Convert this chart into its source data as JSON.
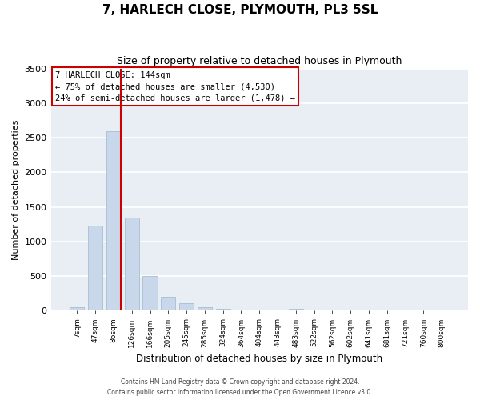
{
  "title": "7, HARLECH CLOSE, PLYMOUTH, PL3 5SL",
  "subtitle": "Size of property relative to detached houses in Plymouth",
  "xlabel": "Distribution of detached houses by size in Plymouth",
  "ylabel": "Number of detached properties",
  "bar_color": "#c8d8ea",
  "bar_edge_color": "#9ab8cc",
  "plot_bg_color": "#e8eef4",
  "fig_bg_color": "#ffffff",
  "grid_color": "#ffffff",
  "bin_labels": [
    "7sqm",
    "47sqm",
    "86sqm",
    "126sqm",
    "166sqm",
    "205sqm",
    "245sqm",
    "285sqm",
    "324sqm",
    "364sqm",
    "404sqm",
    "443sqm",
    "483sqm",
    "522sqm",
    "562sqm",
    "602sqm",
    "641sqm",
    "681sqm",
    "721sqm",
    "760sqm",
    "800sqm"
  ],
  "bar_values": [
    50,
    1230,
    2590,
    1350,
    500,
    200,
    110,
    45,
    25,
    5,
    0,
    0,
    25,
    0,
    0,
    0,
    0,
    0,
    0,
    0,
    0
  ],
  "ylim": [
    0,
    3500
  ],
  "yticks": [
    0,
    500,
    1000,
    1500,
    2000,
    2500,
    3000,
    3500
  ],
  "vline_after_bar": 2,
  "vline_color": "#cc0000",
  "annotation_title": "7 HARLECH CLOSE: 144sqm",
  "annotation_line1": "← 75% of detached houses are smaller (4,530)",
  "annotation_line2": "24% of semi-detached houses are larger (1,478) →",
  "annotation_box_color": "#ffffff",
  "annotation_box_edge": "#cc0000",
  "footer1": "Contains HM Land Registry data © Crown copyright and database right 2024.",
  "footer2": "Contains public sector information licensed under the Open Government Licence v3.0."
}
